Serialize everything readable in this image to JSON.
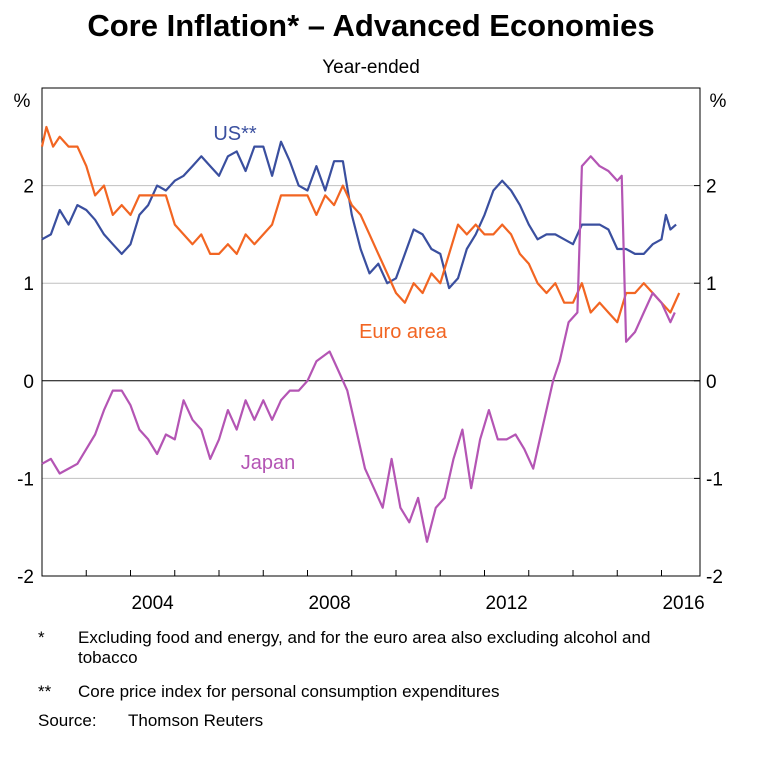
{
  "chart_data": {
    "type": "line",
    "title": "Core Inflation* – Advanced Economies",
    "subtitle": "Year-ended",
    "y_unit": "%",
    "y2_unit": "%",
    "xlim": [
      2002,
      2016.87
    ],
    "xticks": [
      {
        "value": 2004.5,
        "label": "2004"
      },
      {
        "value": 2008.5,
        "label": "2008"
      },
      {
        "value": 2012.5,
        "label": "2012"
      },
      {
        "value": 2016.5,
        "label": "2016"
      }
    ],
    "xminorticks": [
      2003,
      2004,
      2005,
      2006,
      2007,
      2008,
      2009,
      2010,
      2011,
      2012,
      2013,
      2014,
      2015,
      2016
    ],
    "ylim": [
      -2,
      3
    ],
    "yticks": [
      -2,
      -1,
      0,
      1,
      2
    ],
    "y2lim": [
      -2,
      3
    ],
    "y2ticks": [
      -2,
      -1,
      0,
      1,
      2
    ],
    "grid": true,
    "series": [
      {
        "name": "US**",
        "color": "#3a4f9f",
        "x": [
          2002.0,
          2002.2,
          2002.4,
          2002.6,
          2002.8,
          2003.0,
          2003.2,
          2003.4,
          2003.6,
          2003.8,
          2004.0,
          2004.2,
          2004.4,
          2004.6,
          2004.8,
          2005.0,
          2005.2,
          2005.4,
          2005.6,
          2005.8,
          2006.0,
          2006.2,
          2006.4,
          2006.6,
          2006.8,
          2007.0,
          2007.2,
          2007.4,
          2007.6,
          2007.8,
          2008.0,
          2008.2,
          2008.4,
          2008.6,
          2008.8,
          2009.0,
          2009.2,
          2009.4,
          2009.6,
          2009.8,
          2010.0,
          2010.2,
          2010.4,
          2010.6,
          2010.8,
          2011.0,
          2011.2,
          2011.4,
          2011.6,
          2011.8,
          2012.0,
          2012.2,
          2012.4,
          2012.6,
          2012.8,
          2013.0,
          2013.2,
          2013.4,
          2013.6,
          2013.8,
          2014.0,
          2014.2,
          2014.4,
          2014.6,
          2014.8,
          2015.0,
          2015.2,
          2015.4,
          2015.6,
          2015.8,
          2016.0,
          2016.1,
          2016.2,
          2016.33
        ],
        "values": [
          1.45,
          1.5,
          1.75,
          1.6,
          1.8,
          1.75,
          1.65,
          1.5,
          1.4,
          1.3,
          1.4,
          1.7,
          1.8,
          2.0,
          1.95,
          2.05,
          2.1,
          2.2,
          2.3,
          2.2,
          2.1,
          2.3,
          2.35,
          2.15,
          2.4,
          2.4,
          2.1,
          2.45,
          2.25,
          2.0,
          1.95,
          2.2,
          1.95,
          2.25,
          2.25,
          1.7,
          1.35,
          1.1,
          1.2,
          1.0,
          1.05,
          1.3,
          1.55,
          1.5,
          1.35,
          1.3,
          0.95,
          1.05,
          1.35,
          1.5,
          1.7,
          1.95,
          2.05,
          1.95,
          1.8,
          1.6,
          1.45,
          1.5,
          1.5,
          1.45,
          1.4,
          1.6,
          1.6,
          1.6,
          1.55,
          1.35,
          1.35,
          1.3,
          1.3,
          1.4,
          1.45,
          1.7,
          1.55,
          1.6
        ]
      },
      {
        "name": "Euro area",
        "color": "#f26522",
        "x": [
          2002.0,
          2002.1,
          2002.25,
          2002.4,
          2002.6,
          2002.8,
          2003.0,
          2003.2,
          2003.4,
          2003.6,
          2003.8,
          2004.0,
          2004.2,
          2004.4,
          2004.6,
          2004.8,
          2005.0,
          2005.2,
          2005.4,
          2005.6,
          2005.8,
          2006.0,
          2006.2,
          2006.4,
          2006.6,
          2006.8,
          2007.0,
          2007.2,
          2007.4,
          2007.6,
          2007.8,
          2008.0,
          2008.2,
          2008.4,
          2008.6,
          2008.8,
          2009.0,
          2009.2,
          2009.4,
          2009.6,
          2009.8,
          2010.0,
          2010.2,
          2010.4,
          2010.6,
          2010.8,
          2011.0,
          2011.2,
          2011.4,
          2011.6,
          2011.8,
          2012.0,
          2012.2,
          2012.4,
          2012.6,
          2012.8,
          2013.0,
          2013.2,
          2013.4,
          2013.6,
          2013.8,
          2014.0,
          2014.2,
          2014.4,
          2014.6,
          2014.8,
          2015.0,
          2015.2,
          2015.4,
          2015.6,
          2015.8,
          2016.0,
          2016.2,
          2016.4
        ],
        "values": [
          2.4,
          2.6,
          2.4,
          2.5,
          2.4,
          2.4,
          2.2,
          1.9,
          2.0,
          1.7,
          1.8,
          1.7,
          1.9,
          1.9,
          1.9,
          1.9,
          1.6,
          1.5,
          1.4,
          1.5,
          1.3,
          1.3,
          1.4,
          1.3,
          1.5,
          1.4,
          1.5,
          1.6,
          1.9,
          1.9,
          1.9,
          1.9,
          1.7,
          1.9,
          1.8,
          2.0,
          1.8,
          1.7,
          1.5,
          1.3,
          1.1,
          0.9,
          0.8,
          1.0,
          0.9,
          1.1,
          1.0,
          1.3,
          1.6,
          1.5,
          1.6,
          1.5,
          1.5,
          1.6,
          1.5,
          1.3,
          1.2,
          1.0,
          0.9,
          1.0,
          0.8,
          0.8,
          1.0,
          0.7,
          0.8,
          0.7,
          0.6,
          0.9,
          0.9,
          1.0,
          0.9,
          0.8,
          0.7,
          0.9
        ]
      },
      {
        "name": "Japan",
        "color": "#b455b4",
        "x": [
          2002.0,
          2002.2,
          2002.4,
          2002.6,
          2002.8,
          2003.0,
          2003.2,
          2003.4,
          2003.6,
          2003.8,
          2004.0,
          2004.2,
          2004.4,
          2004.6,
          2004.8,
          2005.0,
          2005.2,
          2005.4,
          2005.6,
          2005.8,
          2006.0,
          2006.2,
          2006.4,
          2006.6,
          2006.8,
          2007.0,
          2007.2,
          2007.4,
          2007.6,
          2007.8,
          2008.0,
          2008.2,
          2008.5,
          2008.7,
          2008.9,
          2009.1,
          2009.3,
          2009.5,
          2009.7,
          2009.9,
          2010.1,
          2010.3,
          2010.5,
          2010.7,
          2010.9,
          2011.1,
          2011.3,
          2011.5,
          2011.7,
          2011.9,
          2012.1,
          2012.3,
          2012.5,
          2012.7,
          2012.9,
          2013.1,
          2013.3,
          2013.55,
          2013.7,
          2013.9,
          2014.1,
          2014.2,
          2014.4,
          2014.6,
          2014.8,
          2015.0,
          2015.1,
          2015.2,
          2015.4,
          2015.6,
          2015.8,
          2016.0,
          2016.2,
          2016.3
        ],
        "values": [
          -0.85,
          -0.8,
          -0.95,
          -0.9,
          -0.85,
          -0.7,
          -0.55,
          -0.3,
          -0.1,
          -0.1,
          -0.25,
          -0.5,
          -0.6,
          -0.75,
          -0.55,
          -0.6,
          -0.2,
          -0.4,
          -0.5,
          -0.8,
          -0.6,
          -0.3,
          -0.5,
          -0.2,
          -0.4,
          -0.2,
          -0.4,
          -0.2,
          -0.1,
          -0.1,
          0.0,
          0.2,
          0.3,
          0.1,
          -0.1,
          -0.5,
          -0.9,
          -1.1,
          -1.3,
          -0.8,
          -1.3,
          -1.45,
          -1.2,
          -1.65,
          -1.3,
          -1.2,
          -0.8,
          -0.5,
          -1.1,
          -0.6,
          -0.3,
          -0.6,
          -0.6,
          -0.55,
          -0.7,
          -0.9,
          -0.5,
          0.0,
          0.2,
          0.6,
          0.7,
          2.2,
          2.3,
          2.2,
          2.15,
          2.05,
          2.1,
          0.4,
          0.5,
          0.7,
          0.9,
          0.8,
          0.6,
          0.7
        ]
      }
    ],
    "series_labels": [
      {
        "series": 0,
        "text": "US**"
      },
      {
        "series": 1,
        "text": "Euro area"
      },
      {
        "series": 2,
        "text": "Japan"
      }
    ],
    "notes": [
      {
        "marker": "*",
        "text": "Excluding food and energy, and for the euro area also excluding alcohol and tobacco"
      },
      {
        "marker": "**",
        "text": "Core price index for personal consumption expenditures"
      },
      {
        "marker": "Source:",
        "text": "Thomson Reuters"
      }
    ]
  }
}
